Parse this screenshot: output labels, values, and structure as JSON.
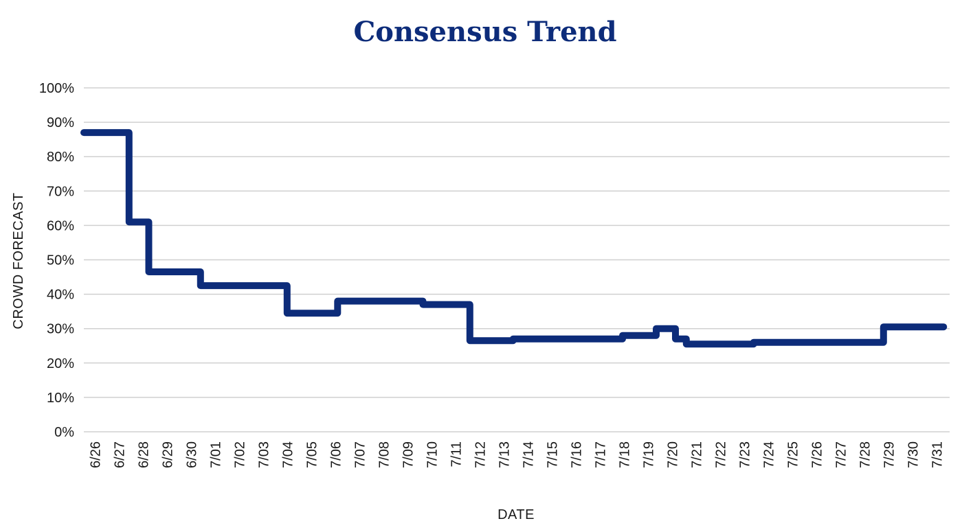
{
  "chart_data": {
    "type": "line",
    "step": true,
    "title": "Consensus Trend",
    "xlabel": "DATE",
    "ylabel": "CROWD FORECAST",
    "ylim": [
      0,
      100
    ],
    "yticks": [
      "0%",
      "10%",
      "20%",
      "30%",
      "40%",
      "50%",
      "60%",
      "70%",
      "80%",
      "90%",
      "100%"
    ],
    "grid": true,
    "legend": "none",
    "color": "#0d2c7a",
    "categories": [
      "6/26",
      "6/27",
      "6/28",
      "6/29",
      "6/30",
      "7/01",
      "7/02",
      "7/03",
      "7/04",
      "7/05",
      "7/06",
      "7/07",
      "7/08",
      "7/09",
      "7/10",
      "7/11",
      "7/12",
      "7/13",
      "7/14",
      "7/15",
      "7/16",
      "7/17",
      "7/18",
      "7/19",
      "7/20",
      "7/21",
      "7/22",
      "7/23",
      "7/24",
      "7/25",
      "7/26",
      "7/27",
      "7/28",
      "7/29",
      "7/30",
      "7/31"
    ],
    "series": [
      {
        "x": [
          "6/26",
          "6/26",
          "6/27",
          "6/27",
          "6/28",
          "6/28",
          "6/30",
          "6/30",
          "7/04",
          "7/04",
          "7/06",
          "7/06",
          "7/10",
          "7/10",
          "7/12",
          "7/12",
          "7/13",
          "7/13",
          "7/18",
          "7/18",
          "7/19",
          "7/19",
          "7/20",
          "7/20",
          "7/21",
          "7/21",
          "7/23",
          "7/23",
          "7/27",
          "7/27",
          "7/29",
          "7/29",
          "7/31"
        ],
        "x_offset": [
          0,
          0.88,
          0.88,
          0.88,
          0.7,
          0.7,
          0.85,
          0.85,
          0.45,
          0.45,
          0.55,
          0.55,
          0.1,
          0.1,
          0.05,
          0.05,
          0.85,
          0.85,
          0.4,
          0.4,
          0.8,
          0.8,
          0.6,
          0.6,
          0.05,
          0.05,
          0.85,
          0.85,
          0.25,
          0.25,
          0.25,
          0.25,
          0.75
        ],
        "y": [
          87,
          87,
          87,
          61,
          61,
          46.5,
          46.5,
          42.5,
          42.5,
          34.5,
          34.5,
          38,
          38,
          37,
          37,
          26.5,
          26.5,
          27,
          27,
          28,
          28,
          30,
          30,
          27,
          27,
          25.5,
          25.5,
          26,
          26,
          26,
          26,
          30.5,
          30.5
        ]
      }
    ]
  }
}
